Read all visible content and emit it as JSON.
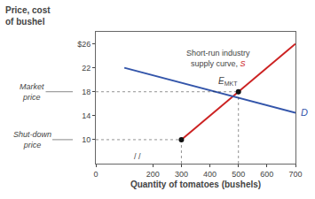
{
  "chart_data": {
    "type": "line",
    "xlabel": "Quantity of tomatoes (bushels)",
    "ylabel": "Price, cost\nof bushel",
    "xlim": [
      0,
      700
    ],
    "ylim": [
      6,
      28
    ],
    "xticks": [
      0,
      200,
      300,
      400,
      500,
      600,
      700
    ],
    "yticks": [
      10,
      14,
      18,
      22,
      {
        "value": 26,
        "label": "$26"
      }
    ],
    "grid": false,
    "series": [
      {
        "name": "S",
        "color": "#cc2222",
        "x": [
          300,
          700
        ],
        "values": [
          10,
          26
        ]
      },
      {
        "name": "D",
        "color": "#3355aa",
        "x": [
          100,
          700
        ],
        "values": [
          22.0,
          14.5
        ]
      }
    ],
    "points": [
      {
        "x": 500,
        "y": 18,
        "label": "E",
        "label_sub": "MKT",
        "price_label": "Market\nprice",
        "color": "#111111",
        "line_style": "dotted"
      },
      {
        "x": 300,
        "y": 10,
        "price_label": "Shut-down\nprice",
        "color": "#111111",
        "line_style": "dotted"
      }
    ],
    "annotations": [
      {
        "text": "Short-run industry\nsupply curve, ",
        "x": 430,
        "y": 25.5,
        "series": "S"
      },
      {
        "text": "/ /",
        "x": 145,
        "y": 6.1
      }
    ]
  }
}
